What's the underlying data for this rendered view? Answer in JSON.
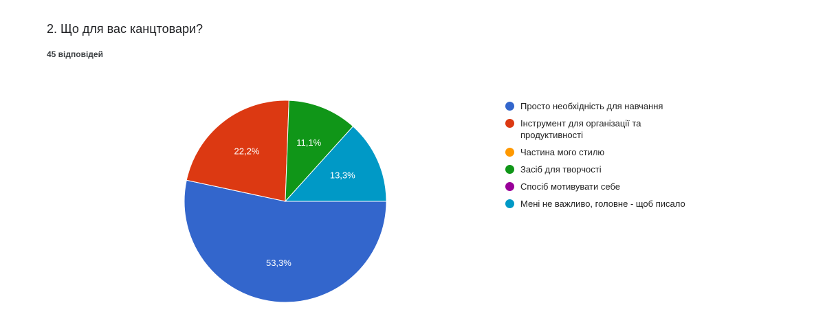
{
  "chart_data": {
    "type": "pie",
    "title": "2. Що для вас канцтовари?",
    "subtitle": "45 відповідей",
    "categories": [
      "Просто необхідність для навчання",
      "Інструмент для організації та продуктивності",
      "Частина мого стилю",
      "Засіб для творчості",
      "Спосіб мотивувати себе",
      "Мені не важливо, головне - щоб писало"
    ],
    "values": [
      53.3,
      22.2,
      0,
      11.1,
      0,
      13.3
    ],
    "value_labels": [
      "53,3%",
      "22,2%",
      null,
      "11,1%",
      null,
      "13,3%"
    ],
    "colors": [
      "#3366cc",
      "#dc3912",
      "#ff9900",
      "#109618",
      "#990099",
      "#0099c6"
    ]
  }
}
